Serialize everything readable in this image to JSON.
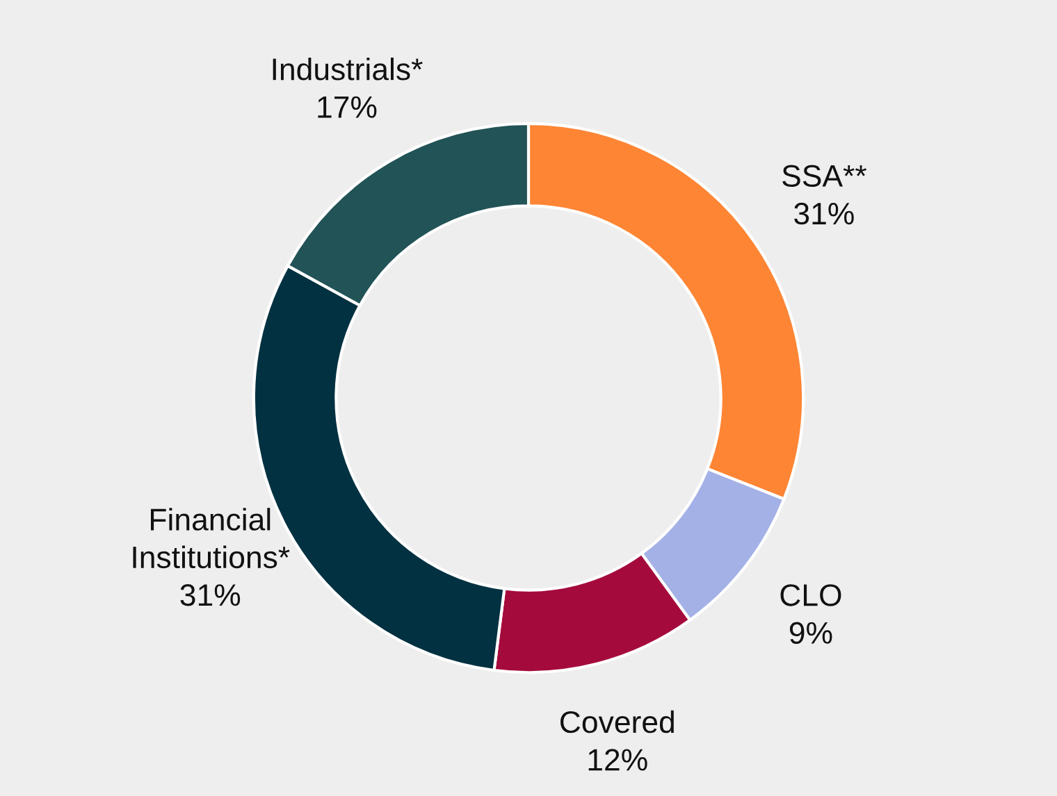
{
  "chart_data": {
    "type": "donut",
    "categories": [
      "SSA**",
      "CLO",
      "Covered",
      "Financial\nInstitutions*",
      "Industrials*"
    ],
    "values": [
      31,
      9,
      12,
      31,
      17
    ],
    "value_labels": [
      "31%",
      "9%",
      "12%",
      "31%",
      "17%"
    ],
    "colors": [
      "#fe8534",
      "#a3b1e6",
      "#a50a3c",
      "#023141",
      "#215357"
    ],
    "legend": false
  }
}
